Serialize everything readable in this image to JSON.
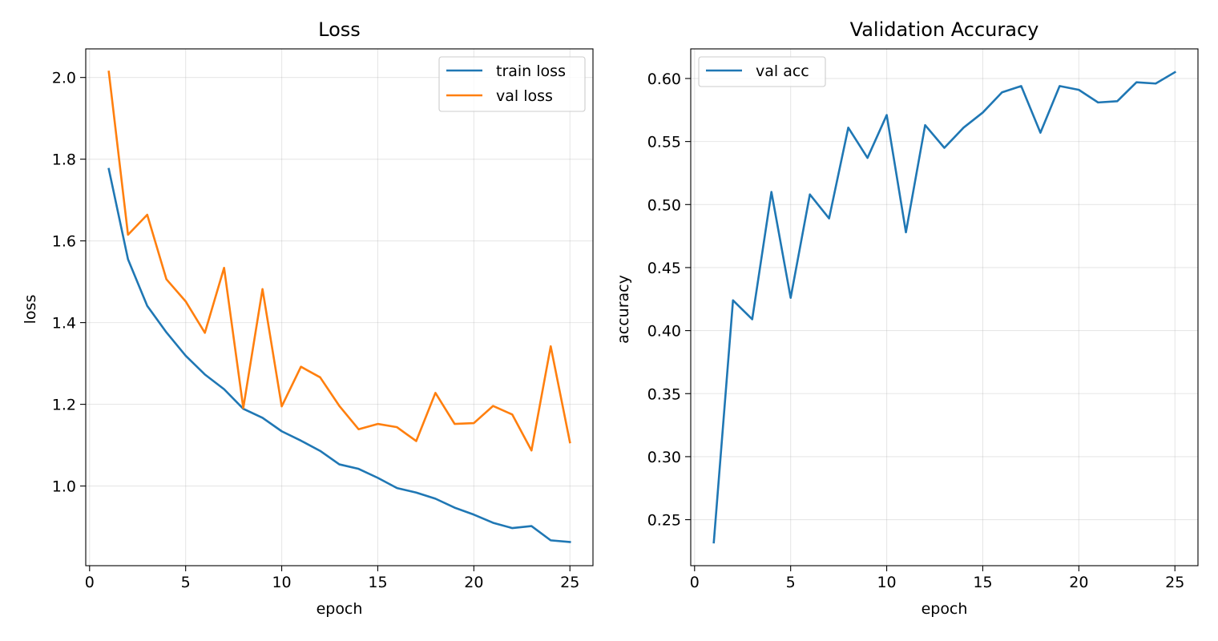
{
  "chart_data": [
    {
      "type": "line",
      "title": "Loss",
      "xlabel": "epoch",
      "ylabel": "loss",
      "xlim": [
        -0.2,
        26.2
      ],
      "ylim": [
        0.805,
        2.07
      ],
      "xticks": [
        0,
        5,
        10,
        15,
        20,
        25
      ],
      "yticks": [
        1.0,
        1.2,
        1.4,
        1.6,
        1.8,
        2.0
      ],
      "ytick_labels": [
        "1.0",
        "1.2",
        "1.4",
        "1.6",
        "1.8",
        "2.0"
      ],
      "grid": true,
      "legend": "upper right",
      "x": [
        1,
        2,
        3,
        4,
        5,
        6,
        7,
        8,
        9,
        10,
        11,
        12,
        13,
        14,
        15,
        16,
        17,
        18,
        19,
        20,
        21,
        22,
        23,
        24,
        25
      ],
      "series": [
        {
          "name": "train loss",
          "color": "#1f77b4",
          "values": [
            1.776,
            1.555,
            1.441,
            1.376,
            1.319,
            1.273,
            1.237,
            1.189,
            1.167,
            1.134,
            1.111,
            1.086,
            1.053,
            1.042,
            1.02,
            0.995,
            0.984,
            0.969,
            0.947,
            0.93,
            0.91,
            0.897,
            0.902,
            0.867,
            0.863
          ]
        },
        {
          "name": "val loss",
          "color": "#ff7f0e",
          "values": [
            2.014,
            1.615,
            1.664,
            1.506,
            1.452,
            1.375,
            1.534,
            1.191,
            1.482,
            1.195,
            1.292,
            1.266,
            1.196,
            1.139,
            1.152,
            1.144,
            1.11,
            1.228,
            1.152,
            1.154,
            1.196,
            1.175,
            1.087,
            1.342,
            1.107
          ]
        }
      ]
    },
    {
      "type": "line",
      "title": "Validation Accuracy",
      "xlabel": "epoch",
      "ylabel": "accuracy",
      "xlim": [
        -0.2,
        26.2
      ],
      "ylim": [
        0.2135,
        0.6235
      ],
      "xticks": [
        0,
        5,
        10,
        15,
        20,
        25
      ],
      "yticks": [
        0.25,
        0.3,
        0.35,
        0.4,
        0.45,
        0.5,
        0.55,
        0.6
      ],
      "ytick_labels": [
        "0.25",
        "0.30",
        "0.35",
        "0.40",
        "0.45",
        "0.50",
        "0.55",
        "0.60"
      ],
      "grid": true,
      "legend": "upper left",
      "x": [
        1,
        2,
        3,
        4,
        5,
        6,
        7,
        8,
        9,
        10,
        11,
        12,
        13,
        14,
        15,
        16,
        17,
        18,
        19,
        20,
        21,
        22,
        23,
        24,
        25
      ],
      "series": [
        {
          "name": "val acc",
          "color": "#1f77b4",
          "values": [
            0.232,
            0.424,
            0.409,
            0.51,
            0.426,
            0.508,
            0.489,
            0.561,
            0.537,
            0.571,
            0.478,
            0.563,
            0.545,
            0.561,
            0.573,
            0.589,
            0.594,
            0.557,
            0.594,
            0.591,
            0.581,
            0.582,
            0.597,
            0.596,
            0.605
          ]
        }
      ]
    }
  ]
}
